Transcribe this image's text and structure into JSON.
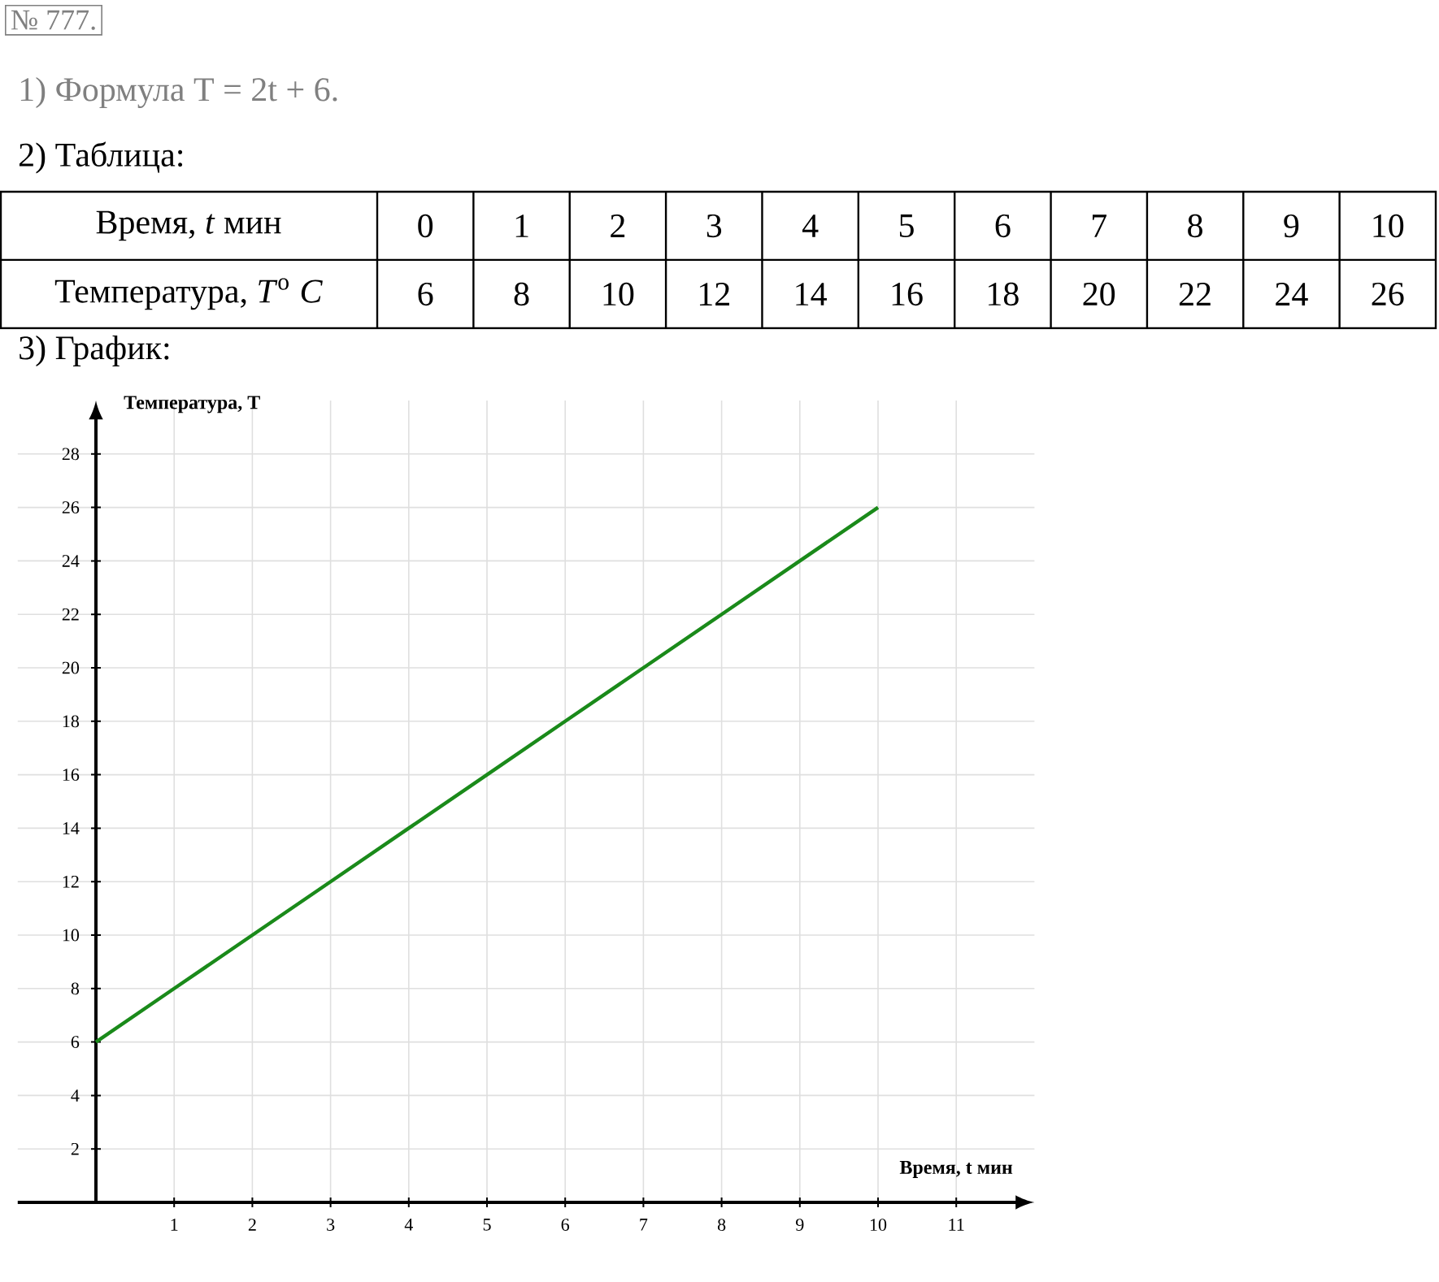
{
  "chart_data": {
    "type": "line",
    "title": "№ 777.",
    "annotations": [
      "1) Формула T = 2t + 6.",
      "2) Таблица:",
      "Время, *t* мин",
      "Температура, *T*$^{o}$ *C*",
      "3) График:",
      "0",
      "1",
      "2",
      "3",
      "4",
      "5",
      "6",
      "7",
      "8",
      "9",
      "10",
      "6",
      "8",
      "10",
      "12",
      "14",
      "16",
      "18",
      "20",
      "22",
      "24",
      "26"
    ],
    "xlabel": "Время, t мин",
    "ylabel": "Температура, T",
    "x": [
      0,
      1,
      2,
      3,
      4,
      5,
      6,
      7,
      8,
      9,
      10
    ],
    "series": [
      {
        "color": "#1a8a1a",
        "values": [
          6,
          8,
          10,
          12,
          14,
          16,
          18,
          20,
          22,
          24,
          26
        ]
      }
    ],
    "xlim": [
      -1,
      12
    ],
    "ylim": [
      0,
      30
    ],
    "xticks": [
      1,
      2,
      3,
      4,
      5,
      6,
      7,
      8,
      9,
      10,
      11
    ],
    "yticks": [
      2,
      4,
      6,
      8,
      10,
      12,
      14,
      16,
      18,
      20,
      22,
      24,
      26,
      28
    ],
    "grid": true,
    "marker": "none",
    "line_style": "solid"
  }
}
